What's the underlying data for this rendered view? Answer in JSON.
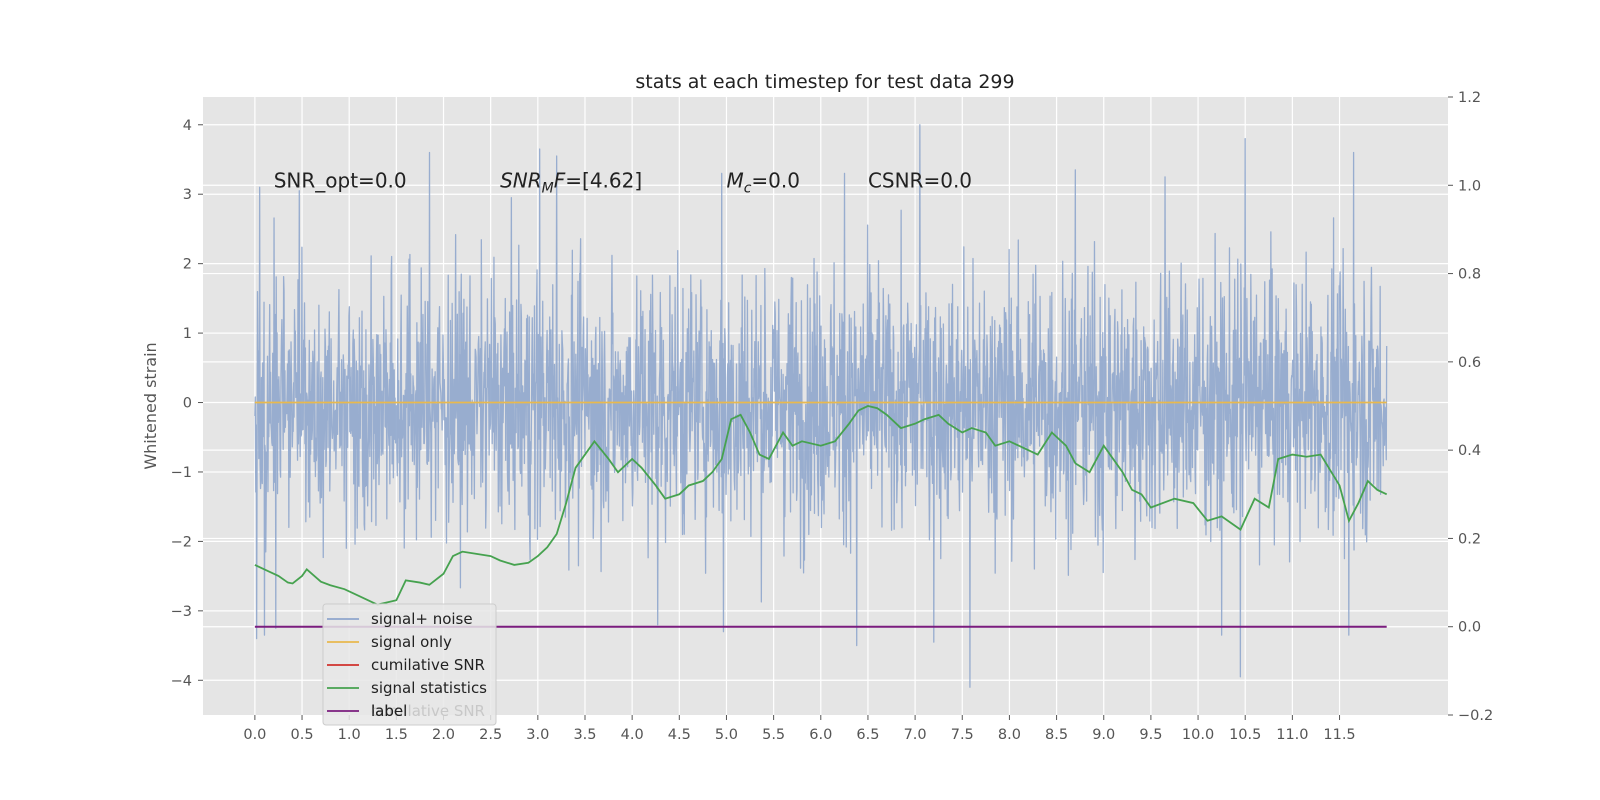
{
  "chart_data": {
    "type": "line",
    "title": "stats at each timestep for test data 299",
    "ylabel": "Whitened strain",
    "y2label": "",
    "xlabel": "",
    "xlim": [
      -0.55,
      12.65
    ],
    "ylim": [
      -4.5,
      4.4
    ],
    "y2lim": [
      -0.2,
      1.2
    ],
    "x_ticks": [
      0.0,
      0.5,
      1.0,
      1.5,
      2.0,
      2.5,
      3.0,
      3.5,
      4.0,
      4.5,
      5.0,
      5.5,
      6.0,
      6.5,
      7.0,
      7.5,
      8.0,
      8.5,
      9.0,
      9.5,
      10.0,
      10.5,
      11.0,
      11.5
    ],
    "x_tick_labels": [
      "0.0",
      "0.5",
      "1.0",
      "1.5",
      "2.0",
      "2.5",
      "3.0",
      "3.5",
      "4.0",
      "4.5",
      "5.0",
      "5.5",
      "6.0",
      "6.5",
      "7.0",
      "7.5",
      "8.0",
      "8.5",
      "9.0",
      "9.5",
      "10.0",
      "10.5",
      "11.0",
      "11.5"
    ],
    "y_ticks": [
      -4,
      -3,
      -2,
      -1,
      0,
      1,
      2,
      3,
      4
    ],
    "y_tick_labels": [
      "−4",
      "−3",
      "−2",
      "−1",
      "0",
      "1",
      "2",
      "3",
      "4"
    ],
    "y2_ticks": [
      -0.2,
      0.0,
      0.2,
      0.4,
      0.6,
      0.8,
      1.0,
      1.2
    ],
    "y2_tick_labels": [
      "−0.2",
      "0.0",
      "0.2",
      "0.4",
      "0.6",
      "0.8",
      "1.0",
      "1.2"
    ],
    "grid": true,
    "legend_position": "lower-left",
    "annotations": [
      {
        "label": "SNR_opt=0.0",
        "x": 0.2,
        "y": 3.2
      },
      {
        "label": "SNR_MF=[4.62]",
        "x": 2.6,
        "y": 3.2
      },
      {
        "label": "M_c=0.0",
        "x": 5.0,
        "y": 3.2
      },
      {
        "label": "CSNR=0.0",
        "x": 6.5,
        "y": 3.2
      }
    ],
    "series": [
      {
        "name": "signal+ noise",
        "color": "#8fa6cc",
        "axis": "left",
        "kind": "noise",
        "x_range": [
          0.0,
          12.0
        ],
        "typical_range": [
          -1.9,
          1.9
        ],
        "extreme_range": [
          -4.1,
          4.0
        ],
        "peaks": [
          {
            "x": 0.05,
            "y": 3.1
          },
          {
            "x": 0.47,
            "y": 3.05
          },
          {
            "x": 1.85,
            "y": 3.6
          },
          {
            "x": 3.02,
            "y": 3.65
          },
          {
            "x": 3.2,
            "y": 3.55
          },
          {
            "x": 4.95,
            "y": 3.3
          },
          {
            "x": 6.25,
            "y": 3.3
          },
          {
            "x": 7.05,
            "y": 4.0
          },
          {
            "x": 8.7,
            "y": 3.35
          },
          {
            "x": 9.65,
            "y": 3.25
          },
          {
            "x": 10.5,
            "y": 3.8
          },
          {
            "x": 11.65,
            "y": 3.6
          }
        ],
        "troughs": [
          {
            "x": 0.02,
            "y": -3.4
          },
          {
            "x": 0.1,
            "y": -3.35
          },
          {
            "x": 0.22,
            "y": -3.25
          },
          {
            "x": 4.27,
            "y": -3.2
          },
          {
            "x": 4.97,
            "y": -3.3
          },
          {
            "x": 6.38,
            "y": -3.5
          },
          {
            "x": 7.2,
            "y": -3.45
          },
          {
            "x": 7.58,
            "y": -4.1
          },
          {
            "x": 10.25,
            "y": -3.35
          },
          {
            "x": 10.45,
            "y": -3.95
          },
          {
            "x": 11.6,
            "y": -3.35
          }
        ]
      },
      {
        "name": "signal only",
        "color": "#e8b94e",
        "axis": "left",
        "x": [
          0.0,
          12.0
        ],
        "y": [
          0.0,
          0.0
        ]
      },
      {
        "name": "cumilative SNR",
        "color": "#d0312d",
        "axis": "right",
        "x": [],
        "y": []
      },
      {
        "name": "signal statistics",
        "color": "#46a24f",
        "axis": "right",
        "x": [
          0.0,
          0.15,
          0.25,
          0.35,
          0.4,
          0.5,
          0.55,
          0.7,
          0.8,
          0.95,
          1.1,
          1.3,
          1.5,
          1.6,
          1.75,
          1.85,
          2.0,
          2.1,
          2.2,
          2.35,
          2.5,
          2.6,
          2.75,
          2.9,
          3.0,
          3.1,
          3.2,
          3.3,
          3.4,
          3.5,
          3.6,
          3.75,
          3.85,
          4.0,
          4.1,
          4.25,
          4.35,
          4.5,
          4.6,
          4.75,
          4.85,
          4.95,
          5.05,
          5.15,
          5.25,
          5.35,
          5.45,
          5.55,
          5.6,
          5.7,
          5.8,
          6.0,
          6.15,
          6.3,
          6.4,
          6.5,
          6.6,
          6.7,
          6.85,
          7.0,
          7.1,
          7.25,
          7.35,
          7.5,
          7.6,
          7.75,
          7.85,
          8.0,
          8.1,
          8.3,
          8.45,
          8.6,
          8.7,
          8.85,
          9.0,
          9.2,
          9.3,
          9.4,
          9.5,
          9.75,
          9.95,
          10.1,
          10.25,
          10.45,
          10.6,
          10.75,
          10.85,
          11.0,
          11.15,
          11.3,
          11.5,
          11.6,
          11.7,
          11.8,
          11.9,
          12.0
        ],
        "y": [
          0.14,
          0.125,
          0.115,
          0.1,
          0.098,
          0.115,
          0.13,
          0.102,
          0.094,
          0.085,
          0.07,
          0.05,
          0.06,
          0.105,
          0.1,
          0.095,
          0.12,
          0.16,
          0.17,
          0.165,
          0.16,
          0.15,
          0.14,
          0.145,
          0.16,
          0.18,
          0.21,
          0.28,
          0.36,
          0.39,
          0.42,
          0.38,
          0.35,
          0.38,
          0.36,
          0.32,
          0.29,
          0.3,
          0.32,
          0.33,
          0.35,
          0.38,
          0.47,
          0.48,
          0.44,
          0.39,
          0.38,
          0.42,
          0.44,
          0.41,
          0.42,
          0.41,
          0.42,
          0.46,
          0.49,
          0.5,
          0.495,
          0.48,
          0.45,
          0.46,
          0.47,
          0.48,
          0.46,
          0.44,
          0.45,
          0.44,
          0.41,
          0.42,
          0.41,
          0.39,
          0.44,
          0.41,
          0.37,
          0.35,
          0.41,
          0.35,
          0.31,
          0.3,
          0.27,
          0.29,
          0.28,
          0.24,
          0.25,
          0.22,
          0.29,
          0.27,
          0.38,
          0.39,
          0.385,
          0.39,
          0.32,
          0.24,
          0.28,
          0.33,
          0.31,
          0.3
        ]
      },
      {
        "name": "label",
        "color": "#7b1c7e",
        "axis": "right",
        "x": [
          0.0,
          12.0
        ],
        "y": [
          0.0,
          0.0
        ]
      }
    ],
    "legend_overlap_text": "cumilative SNR"
  }
}
